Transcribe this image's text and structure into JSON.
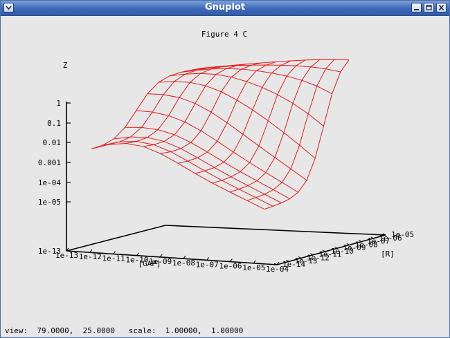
{
  "window": {
    "title": "Gnuplot",
    "buttons": [
      "menu",
      "minimize",
      "maximize",
      "close"
    ]
  },
  "status_bar": {
    "text": "view:  79.0000,  25.0000   scale:  1.00000,  1.00000"
  },
  "colors": {
    "surface": "#e31a1a",
    "axes": "#000000",
    "titlebar": "#3d68b8"
  },
  "chart_data": {
    "type": "surface",
    "title": "Figure 4 C",
    "zlabel": "Z",
    "xlabel": "[GAP]",
    "ylabel": "[R]",
    "z_scale": "log",
    "z_ticks": [
      "1",
      "0.1",
      "0.01",
      "0.001",
      "1e-04",
      "1e-05",
      "1e-13"
    ],
    "x_ticks": [
      "1e-13",
      "1e-12",
      "1e-11",
      "1e-10",
      "1e-09",
      "1e-08",
      "1e-07",
      "1e-06",
      "1e-05",
      "1e-04"
    ],
    "y_ticks": [
      "1e-14",
      "1e-13",
      "1e-12",
      "1e-11",
      "1e-10",
      "1e-09",
      "1e-08",
      "1e-07",
      "1e-06",
      "1e-05"
    ],
    "grid": false,
    "mesh_rows": 10,
    "mesh_cols": 10
  }
}
